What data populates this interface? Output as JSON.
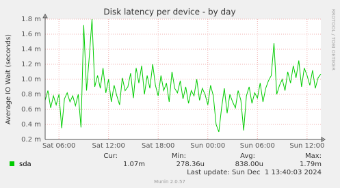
{
  "chart_data": {
    "type": "line",
    "title": "Disk latency per device - by day",
    "y_label": "Average IO Wait (seconds)",
    "side_text": "RRDTOOL / TOBI OETIKER",
    "x": [
      "Sat 04:20",
      "Sat 04:40",
      "Sat 05:00",
      "Sat 05:20",
      "Sat 05:40",
      "Sat 06:00",
      "Sat 06:20",
      "Sat 06:40",
      "Sat 07:00",
      "Sat 07:20",
      "Sat 07:40",
      "Sat 08:00",
      "Sat 08:20",
      "Sat 08:40",
      "Sat 09:00",
      "Sat 09:20",
      "Sat 09:40",
      "Sat 10:00",
      "Sat 10:20",
      "Sat 10:40",
      "Sat 11:00",
      "Sat 11:20",
      "Sat 11:40",
      "Sat 12:00",
      "Sat 12:20",
      "Sat 12:40",
      "Sat 13:00",
      "Sat 13:20",
      "Sat 13:40",
      "Sat 14:00",
      "Sat 14:20",
      "Sat 14:40",
      "Sat 15:00",
      "Sat 15:20",
      "Sat 15:40",
      "Sat 16:00",
      "Sat 16:20",
      "Sat 16:40",
      "Sat 17:00",
      "Sat 17:20",
      "Sat 17:40",
      "Sat 18:00",
      "Sat 18:20",
      "Sat 18:40",
      "Sat 19:00",
      "Sat 19:20",
      "Sat 19:40",
      "Sat 20:00",
      "Sat 20:20",
      "Sat 20:40",
      "Sat 21:00",
      "Sat 21:20",
      "Sat 21:40",
      "Sat 22:00",
      "Sat 22:20",
      "Sat 22:40",
      "Sat 23:00",
      "Sat 23:20",
      "Sat 23:40",
      "Sun 00:00",
      "Sun 00:20",
      "Sun 00:40",
      "Sun 01:00",
      "Sun 01:20",
      "Sun 01:40",
      "Sun 02:00",
      "Sun 02:20",
      "Sun 02:40",
      "Sun 03:00",
      "Sun 03:20",
      "Sun 03:40",
      "Sun 04:00",
      "Sun 04:20",
      "Sun 04:40",
      "Sun 05:00",
      "Sun 05:20",
      "Sun 05:40",
      "Sun 06:00",
      "Sun 06:20",
      "Sun 06:40",
      "Sun 07:00",
      "Sun 07:20",
      "Sun 07:40",
      "Sun 08:00",
      "Sun 08:20",
      "Sun 08:40",
      "Sun 09:00",
      "Sun 09:20",
      "Sun 09:40",
      "Sun 10:00",
      "Sun 10:20",
      "Sun 10:40",
      "Sun 11:00",
      "Sun 11:20",
      "Sun 11:40",
      "Sun 12:00",
      "Sun 12:20",
      "Sun 12:40",
      "Sun 13:00",
      "Sun 13:20",
      "Sun 13:40"
    ],
    "xticks": [
      "Sat 06:00",
      "Sat 12:00",
      "Sat 18:00",
      "Sun 00:00",
      "Sun 06:00",
      "Sun 12:00"
    ],
    "series": [
      {
        "name": "sda",
        "color": "#00cc00",
        "values": [
          0.00072,
          0.00085,
          0.00062,
          0.00078,
          0.00066,
          0.0008,
          0.00035,
          0.00074,
          0.00082,
          0.0007,
          0.00078,
          0.00065,
          0.0008,
          0.00036,
          0.00172,
          0.00085,
          0.0013,
          0.0018,
          0.0009,
          0.00105,
          0.00088,
          0.00115,
          0.00082,
          0.001,
          0.0007,
          0.00092,
          0.00078,
          0.00066,
          0.00102,
          0.00085,
          0.0009,
          0.00108,
          0.00075,
          0.00115,
          0.00095,
          0.00118,
          0.0008,
          0.00105,
          0.00088,
          0.0012,
          0.00092,
          0.00078,
          0.00105,
          0.00085,
          0.00095,
          0.0007,
          0.0011,
          0.00088,
          0.00082,
          0.00098,
          0.00074,
          0.0009,
          0.00068,
          0.00085,
          0.00078,
          0.001,
          0.00072,
          0.00088,
          0.0008,
          0.00066,
          0.00092,
          0.00078,
          0.0004,
          0.0003,
          0.00062,
          0.00088,
          0.00055,
          0.0008,
          0.0007,
          0.00062,
          0.00085,
          0.00072,
          0.00032,
          0.00078,
          0.0009,
          0.00068,
          0.00082,
          0.00075,
          0.00095,
          0.0007,
          0.00088,
          0.00098,
          0.00105,
          0.00148,
          0.0008,
          0.00092,
          0.001,
          0.00085,
          0.0011,
          0.00095,
          0.00118,
          0.00102,
          0.00125,
          0.0009,
          0.00115,
          0.00105,
          0.00092,
          0.00112,
          0.00088,
          0.00102,
          0.00107
        ]
      }
    ],
    "ylim": [
      0.0002,
      0.0018
    ],
    "yticks": [
      {
        "value": 0.0002,
        "label": "0.2 m"
      },
      {
        "value": 0.0004,
        "label": "0.4 m"
      },
      {
        "value": 0.0006,
        "label": "0.6 m"
      },
      {
        "value": 0.0008,
        "label": "0.8 m"
      },
      {
        "value": 0.001,
        "label": "1.0 m"
      },
      {
        "value": 0.0012,
        "label": "1.2 m"
      },
      {
        "value": 0.0014,
        "label": "1.4 m"
      },
      {
        "value": 0.0016,
        "label": "1.6 m"
      },
      {
        "value": 0.0018,
        "label": "1.8 m"
      }
    ],
    "grid": true,
    "legend_stats": [
      {
        "label": "Cur:",
        "value": "1.07m"
      },
      {
        "label": "Min:",
        "value": "278.36u"
      },
      {
        "label": "Avg:",
        "value": "838.00u"
      },
      {
        "label": "Max:",
        "value": "1.79m"
      }
    ],
    "last_update": "Last update: Sun Dec  1 13:40:03 2024",
    "footer": "Munin 2.0.57"
  }
}
